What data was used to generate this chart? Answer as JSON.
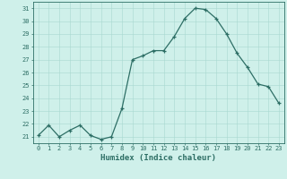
{
  "x": [
    0,
    1,
    2,
    3,
    4,
    5,
    6,
    7,
    8,
    9,
    10,
    11,
    12,
    13,
    14,
    15,
    16,
    17,
    18,
    19,
    20,
    21,
    22,
    23
  ],
  "y": [
    21.1,
    21.9,
    21.0,
    21.5,
    21.9,
    21.1,
    20.8,
    21.0,
    23.2,
    27.0,
    27.3,
    27.7,
    27.7,
    28.8,
    30.2,
    31.0,
    30.9,
    30.2,
    29.0,
    27.5,
    26.4,
    25.1,
    24.9,
    23.6
  ],
  "line_color": "#2d6e65",
  "marker": "+",
  "marker_size": 3.5,
  "marker_lw": 0.9,
  "line_width": 0.9,
  "bg_color": "#cff0ea",
  "grid_color": "#a8d8d0",
  "xlabel": "Humidex (Indice chaleur)",
  "ylabel_ticks": [
    21,
    22,
    23,
    24,
    25,
    26,
    27,
    28,
    29,
    30,
    31
  ],
  "xlim": [
    -0.5,
    23.5
  ],
  "ylim": [
    20.5,
    31.5
  ],
  "xlabel_color": "#2d6e65",
  "tick_color": "#2d6e65",
  "tick_fontsize": 5.0,
  "xlabel_fontsize": 6.5,
  "font": "monospace"
}
